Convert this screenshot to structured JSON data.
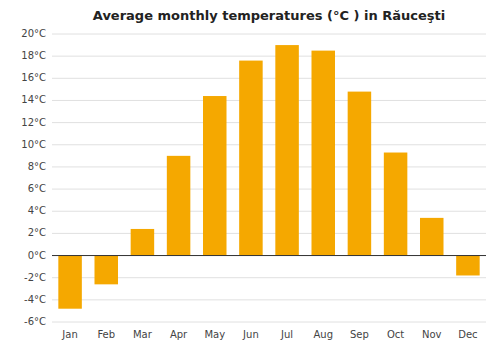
{
  "chart_data": {
    "type": "bar",
    "title": "Average monthly temperatures (°C ) in Răuceşti",
    "categories": [
      "Jan",
      "Feb",
      "Mar",
      "Apr",
      "May",
      "Jun",
      "Jul",
      "Aug",
      "Sep",
      "Oct",
      "Nov",
      "Dec"
    ],
    "values": [
      -4.8,
      -2.6,
      2.4,
      9.0,
      14.4,
      17.6,
      19.0,
      18.5,
      14.8,
      9.3,
      3.4,
      -1.8
    ],
    "color": "#F5A800",
    "ylim": [
      -6,
      20
    ],
    "yticks": [
      {
        "value": -6,
        "label": "-6°C"
      },
      {
        "value": -4,
        "label": "-4°C"
      },
      {
        "value": -2,
        "label": "-2°C"
      },
      {
        "value": 0,
        "label": "0°C"
      },
      {
        "value": 2,
        "label": "2°C"
      },
      {
        "value": 4,
        "label": "4°C"
      },
      {
        "value": 6,
        "label": "6°C"
      },
      {
        "value": 8,
        "label": "8°C"
      },
      {
        "value": 10,
        "label": "10°C"
      },
      {
        "value": 12,
        "label": "12°C"
      },
      {
        "value": 14,
        "label": "14°C"
      },
      {
        "value": 16,
        "label": "16°C"
      },
      {
        "value": 18,
        "label": "18°C"
      },
      {
        "value": 20,
        "label": "20°C"
      }
    ],
    "grid": true
  }
}
